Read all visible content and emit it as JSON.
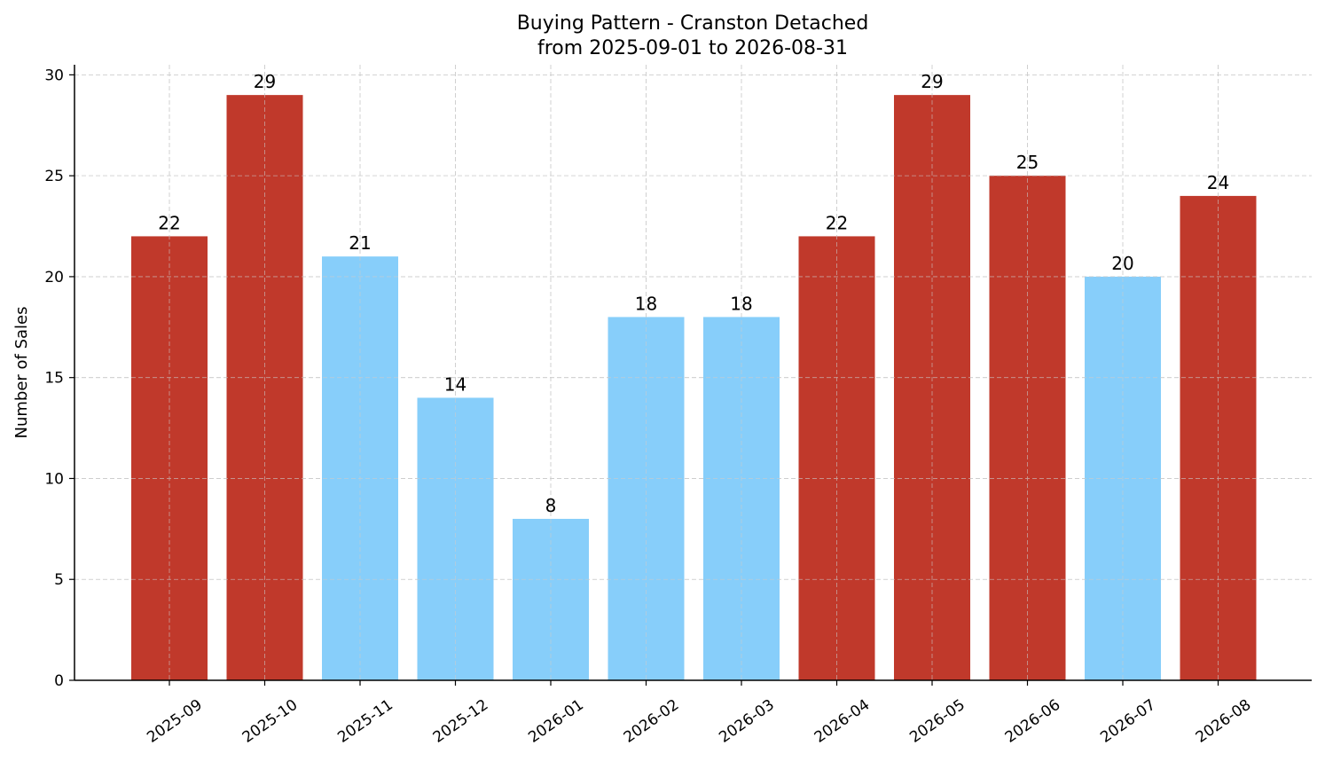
{
  "chart_data": {
    "type": "bar",
    "title": "Buying Pattern - Cranston Detached",
    "subtitle": "from 2025-09-01 to 2026-08-31",
    "xlabel": "",
    "ylabel": "Number of Sales",
    "ylim": [
      0,
      30.5
    ],
    "yticks": [
      0,
      5,
      10,
      15,
      20,
      25,
      30
    ],
    "grid": true,
    "categories": [
      "2025-09",
      "2025-10",
      "2025-11",
      "2025-12",
      "2026-01",
      "2026-02",
      "2026-03",
      "2026-04",
      "2026-05",
      "2026-06",
      "2026-07",
      "2026-08"
    ],
    "values": [
      22,
      29,
      21,
      14,
      8,
      18,
      18,
      22,
      29,
      25,
      20,
      24
    ],
    "bar_colors": [
      "#c0392b",
      "#c0392b",
      "#87cefa",
      "#87cefa",
      "#87cefa",
      "#87cefa",
      "#87cefa",
      "#c0392b",
      "#c0392b",
      "#c0392b",
      "#87cefa",
      "#c0392b"
    ],
    "data_labels": [
      "22",
      "29",
      "21",
      "14",
      "8",
      "18",
      "18",
      "22",
      "29",
      "25",
      "20",
      "24"
    ]
  }
}
